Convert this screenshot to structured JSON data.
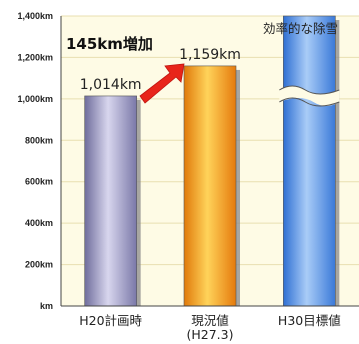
{
  "chart_data": {
    "type": "bar",
    "categories": [
      "H20計画時",
      "現況値\n(H27.3)",
      "H30目標値"
    ],
    "values": [
      1014,
      1159,
      null
    ],
    "value_labels": [
      "1,014km",
      "1,159km",
      ""
    ],
    "ylim": [
      0,
      1400
    ],
    "y_ticks": [
      0,
      200,
      400,
      600,
      800,
      1000,
      1200,
      1400
    ],
    "y_tick_labels": [
      "km",
      "200km",
      "400km",
      "600km",
      "800km",
      "1,000km",
      "1,200km",
      "1,400km"
    ],
    "grid": true,
    "increase_annotation": "145km増加",
    "target_label": "効率的な除雪",
    "axis_break": true,
    "colors": {
      "background": "#fefbe5",
      "grid": "#e8dfb0",
      "bar_h20": "#9e9cc4",
      "bar_current": "#f7a21a",
      "bar_target": "#4f8fe6",
      "arrow": "#e8251a"
    }
  }
}
